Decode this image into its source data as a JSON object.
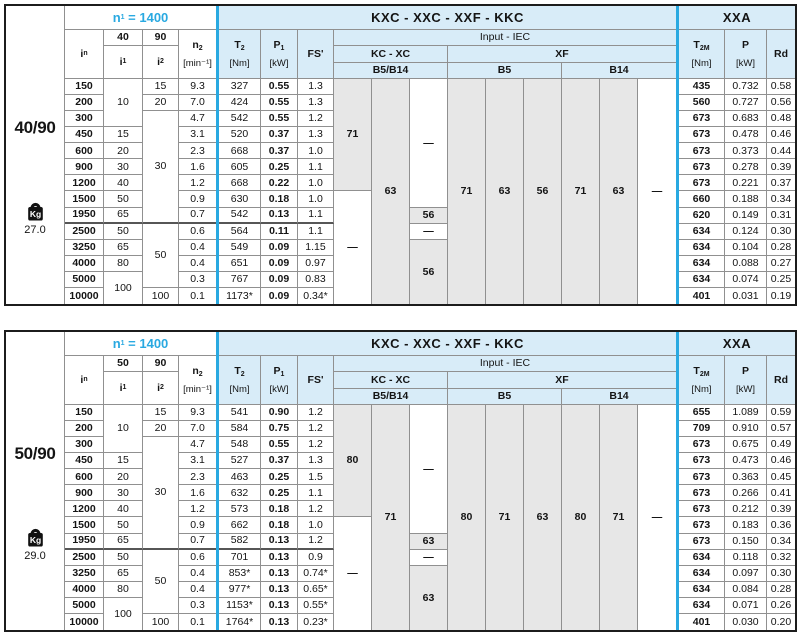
{
  "colors": {
    "accent_cyan": "#29a9e1",
    "header_blue": "#d8ecf8",
    "cell_gray": "#e7e7e7",
    "grid_line": "#909090",
    "outer_border": "#1c1c1c"
  },
  "shared_header": {
    "n1_base": "n",
    "n1_sub": "1",
    "n1_eq": "= 1400",
    "title": "KXC - XXC - XXF - KKC",
    "xxa_title": "XXA",
    "input_iec": "Input  -  IEC",
    "kc_xc": "KC - XC",
    "xf": "XF",
    "b5b14": "B5/B14",
    "b5": "B5",
    "b14": "B14",
    "in_base": "i",
    "in_sub": "n",
    "i1_base": "i",
    "i1_sub": "1",
    "i2_base": "i",
    "i2_sub": "2",
    "n2_base": "n",
    "n2_sub": "2",
    "n2_unit": "[min⁻¹]",
    "t2_base": "T",
    "t2_sub": "2",
    "t2_unit": "[Nm]",
    "p1_base": "P",
    "p1_sub": "1",
    "p1_unit": "[kW]",
    "fs": "FS'",
    "t2m_base": "T",
    "t2m_sub": "2M",
    "t2m_unit": "[Nm]",
    "p_label": "P",
    "p_unit": "[kW]",
    "rd": "Rd",
    "kg_label": "Kg"
  },
  "tables": [
    {
      "model": "40/90",
      "weight": "27.0",
      "group1": "40",
      "group2": "90",
      "in": [
        "150",
        "200",
        "300",
        "450",
        "600",
        "900",
        "1200",
        "1500",
        "1950",
        "2500",
        "3250",
        "4000",
        "5000",
        "10000"
      ],
      "i1": [
        [
          "10",
          3
        ],
        [
          "15",
          1
        ],
        [
          "20",
          1
        ],
        [
          "30",
          1
        ],
        [
          "40",
          1
        ],
        [
          "50",
          1
        ],
        [
          "65",
          1
        ],
        [
          "50",
          1
        ],
        [
          "65",
          1
        ],
        [
          "80",
          1
        ],
        [
          "100",
          2
        ]
      ],
      "i2": [
        [
          "15",
          1
        ],
        [
          "20",
          1
        ],
        [
          "30",
          7
        ],
        [
          "50",
          4
        ],
        [
          "100",
          1
        ]
      ],
      "n2": [
        "9.3",
        "7.0",
        "4.7",
        "3.1",
        "2.3",
        "1.6",
        "1.2",
        "0.9",
        "0.7",
        "0.6",
        "0.4",
        "0.4",
        "0.3",
        "0.1"
      ],
      "t2": [
        "327",
        "424",
        "542",
        "520",
        "668",
        "605",
        "668",
        "630",
        "542",
        "564",
        "549",
        "651",
        "767",
        "1173*"
      ],
      "p1": [
        "0.55",
        "0.55",
        "0.55",
        "0.37",
        "0.37",
        "0.25",
        "0.22",
        "0.18",
        "0.13",
        "0.11",
        "0.09",
        "0.09",
        "0.09",
        "0.09"
      ],
      "fs": [
        "1.3",
        "1.3",
        "1.2",
        "1.3",
        "1.0",
        "1.1",
        "1.0",
        "1.0",
        "1.1",
        "1.1",
        "1.15",
        "0.97",
        "0.83",
        "0.34*"
      ],
      "iec": [
        [
          [
            "71",
            7,
            "g"
          ],
          [
            "—",
            7,
            "w"
          ]
        ],
        [
          [
            "63",
            14,
            "g"
          ]
        ],
        [
          [
            "—",
            8,
            "w"
          ],
          [
            "56",
            1,
            "g"
          ],
          [
            "—",
            1,
            "w"
          ],
          [
            "56",
            4,
            "g"
          ]
        ],
        [
          [
            "71",
            14,
            "g"
          ]
        ],
        [
          [
            "63",
            14,
            "g"
          ]
        ],
        [
          [
            "56",
            14,
            "g"
          ]
        ],
        [
          [
            "71",
            14,
            "g"
          ]
        ],
        [
          [
            "63",
            14,
            "g"
          ]
        ],
        [
          [
            "—",
            14,
            "w"
          ]
        ]
      ],
      "t2m": [
        "435",
        "560",
        "673",
        "673",
        "673",
        "673",
        "673",
        "660",
        "620",
        "634",
        "634",
        "634",
        "634",
        "401"
      ],
      "p": [
        "0.732",
        "0.727",
        "0.683",
        "0.478",
        "0.373",
        "0.278",
        "0.221",
        "0.188",
        "0.149",
        "0.124",
        "0.104",
        "0.088",
        "0.074",
        "0.031"
      ],
      "rd": [
        "0.58",
        "0.56",
        "0.48",
        "0.46",
        "0.44",
        "0.39",
        "0.37",
        "0.34",
        "0.31",
        "0.30",
        "0.28",
        "0.27",
        "0.25",
        "0.19"
      ]
    },
    {
      "model": "50/90",
      "weight": "29.0",
      "group1": "50",
      "group2": "90",
      "in": [
        "150",
        "200",
        "300",
        "450",
        "600",
        "900",
        "1200",
        "1500",
        "1950",
        "2500",
        "3250",
        "4000",
        "5000",
        "10000"
      ],
      "i1": [
        [
          "10",
          3
        ],
        [
          "15",
          1
        ],
        [
          "20",
          1
        ],
        [
          "30",
          1
        ],
        [
          "40",
          1
        ],
        [
          "50",
          1
        ],
        [
          "65",
          1
        ],
        [
          "50",
          1
        ],
        [
          "65",
          1
        ],
        [
          "80",
          1
        ],
        [
          "100",
          2
        ]
      ],
      "i2": [
        [
          "15",
          1
        ],
        [
          "20",
          1
        ],
        [
          "30",
          7
        ],
        [
          "50",
          4
        ],
        [
          "100",
          1
        ]
      ],
      "n2": [
        "9.3",
        "7.0",
        "4.7",
        "3.1",
        "2.3",
        "1.6",
        "1.2",
        "0.9",
        "0.7",
        "0.6",
        "0.4",
        "0.4",
        "0.3",
        "0.1"
      ],
      "t2": [
        "541",
        "584",
        "548",
        "527",
        "463",
        "632",
        "573",
        "662",
        "582",
        "701",
        "853*",
        "977*",
        "1153*",
        "1764*"
      ],
      "p1": [
        "0.90",
        "0.75",
        "0.55",
        "0.37",
        "0.25",
        "0.25",
        "0.18",
        "0.18",
        "0.13",
        "0.13",
        "0.13",
        "0.13",
        "0.13",
        "0.13"
      ],
      "fs": [
        "1.2",
        "1.2",
        "1.2",
        "1.3",
        "1.5",
        "1.1",
        "1.2",
        "1.0",
        "1.2",
        "0.9",
        "0.74*",
        "0.65*",
        "0.55*",
        "0.23*"
      ],
      "iec": [
        [
          [
            "80",
            7,
            "g"
          ],
          [
            "—",
            7,
            "w"
          ]
        ],
        [
          [
            "71",
            14,
            "g"
          ]
        ],
        [
          [
            "—",
            8,
            "w"
          ],
          [
            "63",
            1,
            "g"
          ],
          [
            "—",
            1,
            "w"
          ],
          [
            "63",
            4,
            "g"
          ]
        ],
        [
          [
            "80",
            14,
            "g"
          ]
        ],
        [
          [
            "71",
            14,
            "g"
          ]
        ],
        [
          [
            "63",
            14,
            "g"
          ]
        ],
        [
          [
            "80",
            14,
            "g"
          ]
        ],
        [
          [
            "71",
            14,
            "g"
          ]
        ],
        [
          [
            "—",
            14,
            "w"
          ]
        ]
      ],
      "t2m": [
        "655",
        "709",
        "673",
        "673",
        "673",
        "673",
        "673",
        "673",
        "673",
        "634",
        "634",
        "634",
        "634",
        "401"
      ],
      "p": [
        "1.089",
        "0.910",
        "0.675",
        "0.473",
        "0.363",
        "0.266",
        "0.212",
        "0.183",
        "0.150",
        "0.118",
        "0.097",
        "0.084",
        "0.071",
        "0.030"
      ],
      "rd": [
        "0.59",
        "0.57",
        "0.49",
        "0.46",
        "0.45",
        "0.41",
        "0.39",
        "0.36",
        "0.34",
        "0.32",
        "0.30",
        "0.28",
        "0.26",
        "0.20"
      ]
    }
  ]
}
